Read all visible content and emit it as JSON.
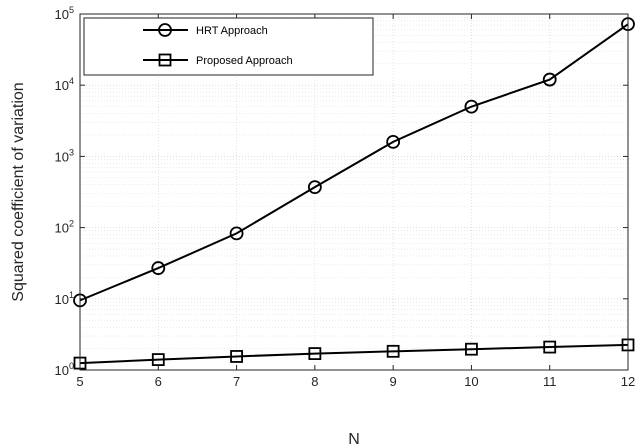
{
  "chart_data": {
    "type": "line",
    "title": "",
    "xlabel": "N",
    "ylabel": "Squared coefficient of variation",
    "x": [
      5,
      6,
      7,
      8,
      9,
      10,
      11,
      12
    ],
    "xlim": [
      5,
      12
    ],
    "ylim": [
      1,
      100000
    ],
    "yscale": "log",
    "xticks": [
      5,
      6,
      7,
      8,
      9,
      10,
      11,
      12
    ],
    "yticks": [
      {
        "base": "10",
        "exp": "0"
      },
      {
        "base": "10",
        "exp": "1"
      },
      {
        "base": "10",
        "exp": "2"
      },
      {
        "base": "10",
        "exp": "3"
      },
      {
        "base": "10",
        "exp": "4"
      },
      {
        "base": "10",
        "exp": "5"
      }
    ],
    "grid": true,
    "legend_position": "top-left",
    "series": [
      {
        "name": "HRT Approach",
        "marker": "circle",
        "color": "#000000",
        "values": [
          9.5,
          27,
          83,
          370,
          1600,
          5000,
          12000,
          72000
        ]
      },
      {
        "name": "Proposed Approach",
        "marker": "square",
        "color": "#000000",
        "values": [
          1.25,
          1.4,
          1.55,
          1.7,
          1.83,
          1.96,
          2.1,
          2.25
        ]
      }
    ]
  }
}
